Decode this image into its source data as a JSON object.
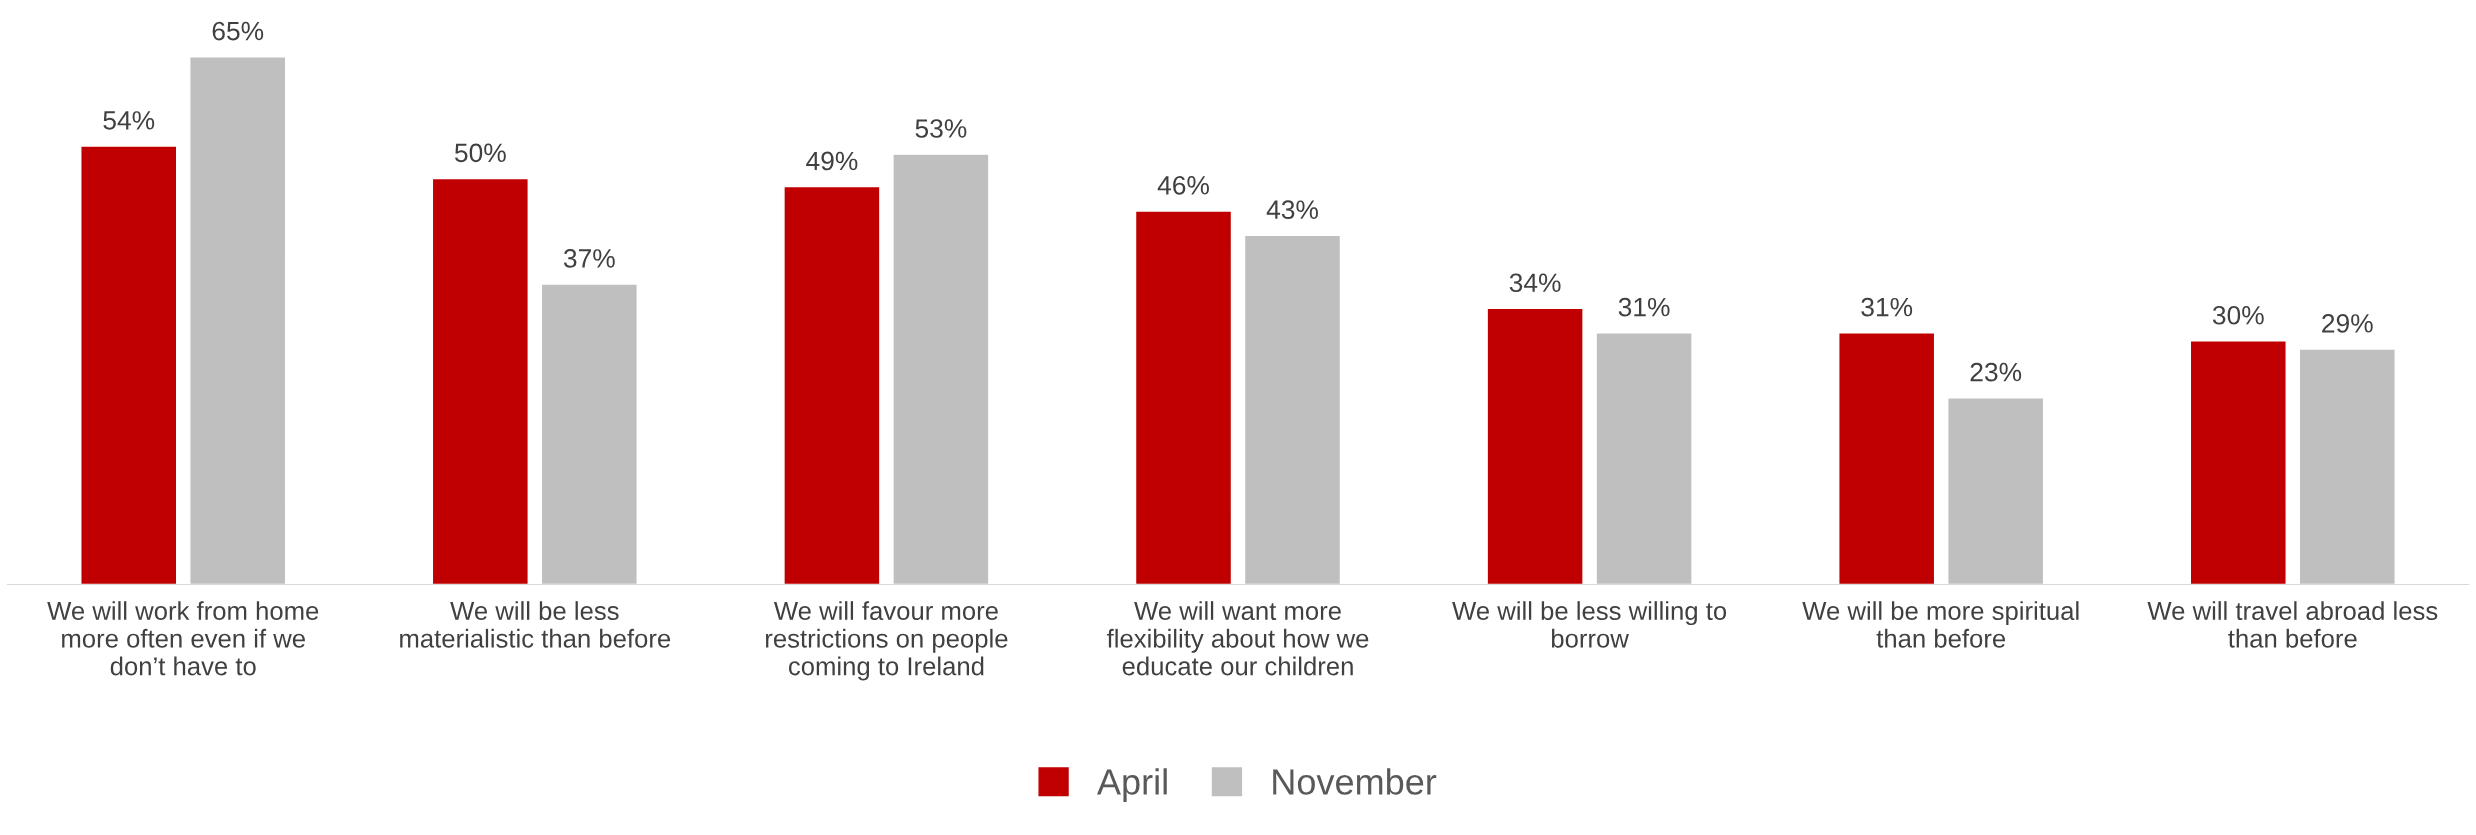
{
  "chart_data": {
    "type": "bar",
    "categories": [
      "We will work from home\nmore often even if we\ndon’t have to",
      "We will be less\nmaterialistic than before",
      "We will favour more\nrestrictions on people\ncoming to Ireland",
      "We will want more\nflexibility about how we\neducate our children",
      "We will be less willing to\nborrow",
      "We will be more spiritual\nthan before",
      "We will travel abroad less\nthan before"
    ],
    "series": [
      {
        "name": "April",
        "color": "#c00000",
        "values": [
          54,
          50,
          49,
          46,
          34,
          31,
          30
        ],
        "value_labels": [
          "54%",
          "50%",
          "49%",
          "46%",
          "34%",
          "31%",
          "30%"
        ]
      },
      {
        "name": "November",
        "color": "#bfbfbf",
        "values": [
          65,
          37,
          53,
          43,
          31,
          23,
          29
        ],
        "value_labels": [
          "65%",
          "37%",
          "53%",
          "43%",
          "31%",
          "23%",
          "29%"
        ]
      }
    ],
    "tick_labels": "x",
    "grid": false,
    "legend": "bottom"
  }
}
